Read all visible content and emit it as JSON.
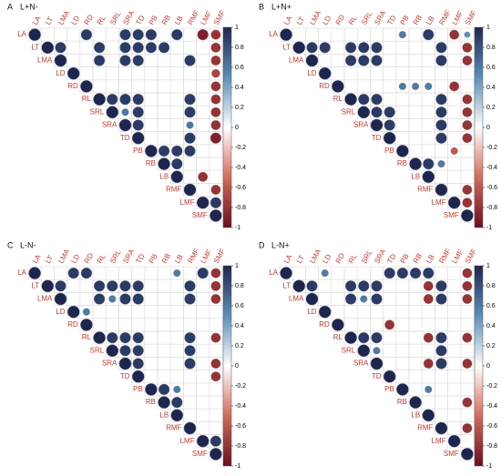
{
  "chart_data": [
    {
      "type": "corrplot",
      "panel": "A",
      "title": "L+N-",
      "labels": [
        "LA",
        "LT",
        "LMA",
        "LD",
        "RD",
        "RL",
        "SRL",
        "SRA",
        "TD",
        "PB",
        "RB",
        "LB",
        "RMF",
        "LMF",
        "SMF"
      ],
      "matrix": [
        [
          1,
          null,
          null,
          null,
          0.9,
          null,
          null,
          0.9,
          0.9,
          0.9,
          null,
          0.9,
          null,
          -0.9,
          -0.8
        ],
        [
          1,
          0.9,
          null,
          null,
          0.9,
          null,
          0.9,
          0.9,
          0.9,
          0.9,
          null,
          null,
          null,
          -0.8
        ],
        [
          1,
          null,
          null,
          0.9,
          null,
          0.9,
          0.9,
          null,
          null,
          null,
          0.9,
          null,
          -0.8
        ],
        [
          1,
          null,
          null,
          null,
          null,
          null,
          null,
          null,
          null,
          null,
          null,
          -0.7
        ],
        [
          1,
          null,
          null,
          null,
          null,
          null,
          null,
          null,
          null,
          null,
          -0.8
        ],
        [
          1,
          0.9,
          0.9,
          0.9,
          null,
          null,
          null,
          0.9,
          null,
          -0.8
        ],
        [
          1,
          0.6,
          0.9,
          null,
          null,
          null,
          0.9,
          null,
          -0.8
        ],
        [
          1,
          0.9,
          null,
          null,
          null,
          0.6,
          null,
          -0.8
        ],
        [
          1,
          null,
          null,
          null,
          0.9,
          null,
          -0.9
        ],
        [
          1,
          0.9,
          0.9,
          0.9,
          null,
          null
        ],
        [
          1,
          0.9,
          null,
          null,
          null
        ],
        [
          1,
          null,
          -0.8,
          null
        ],
        [
          1,
          null,
          -0.8
        ],
        [
          1,
          0.9
        ],
        [
          1
        ]
      ],
      "clim": [
        -1,
        1
      ],
      "ticks": [
        1,
        0.8,
        0.6,
        0.4,
        0.2,
        0,
        -0.2,
        -0.4,
        -0.6,
        -0.8,
        -1
      ],
      "colors": [
        "#6b0e1e",
        "#d46a5a",
        "#ffffff",
        "#5d8fb8",
        "#1e2650"
      ]
    },
    {
      "type": "corrplot",
      "panel": "B",
      "title": "L+N+",
      "labels": [
        "LA",
        "LT",
        "LMA",
        "LD",
        "RD",
        "RL",
        "SRL",
        "SRA",
        "TD",
        "PB",
        "RB",
        "LB",
        "RMF",
        "LMF",
        "SMF"
      ],
      "matrix": [
        [
          1,
          null,
          null,
          null,
          null,
          null,
          null,
          null,
          null,
          0.6,
          null,
          0.9,
          null,
          -0.8,
          0.5
        ],
        [
          1,
          0.9,
          0.9,
          null,
          0.9,
          0.9,
          0.9,
          null,
          null,
          null,
          null,
          0.9,
          null,
          -0.8
        ],
        [
          1,
          null,
          null,
          0.9,
          0.9,
          0.9,
          null,
          null,
          null,
          null,
          0.9,
          null,
          -0.8
        ],
        [
          1,
          null,
          null,
          null,
          null,
          null,
          null,
          null,
          null,
          null,
          null,
          null
        ],
        [
          1,
          null,
          null,
          null,
          null,
          0.6,
          0.6,
          0.6,
          null,
          -0.8,
          null
        ],
        [
          1,
          0.9,
          0.9,
          null,
          null,
          null,
          null,
          0.9,
          null,
          -0.8
        ],
        [
          1,
          0.9,
          0.9,
          null,
          null,
          null,
          0.9,
          null,
          -0.8
        ],
        [
          1,
          0.9,
          null,
          null,
          null,
          0.9,
          null,
          -0.8
        ],
        [
          1,
          null,
          null,
          null,
          0.9,
          null,
          -0.8
        ],
        [
          1,
          null,
          null,
          null,
          -0.6,
          null
        ],
        [
          1,
          0.9,
          0.6,
          null,
          null
        ],
        [
          1,
          null,
          null,
          null
        ],
        [
          1,
          null,
          -0.8
        ],
        [
          1,
          -0.8
        ],
        [
          1
        ]
      ],
      "clim": [
        -1,
        1
      ],
      "ticks": [
        1,
        0.8,
        0.6,
        0.4,
        0.2,
        0,
        -0.2,
        -0.4,
        -0.6,
        -0.8,
        -1
      ],
      "colors": [
        "#6b0e1e",
        "#d46a5a",
        "#ffffff",
        "#5d8fb8",
        "#1e2650"
      ]
    },
    {
      "type": "corrplot",
      "panel": "C",
      "title": "L-N-",
      "labels": [
        "LA",
        "LT",
        "LMA",
        "LD",
        "RD",
        "RL",
        "SRL",
        "SRA",
        "TD",
        "PB",
        "RB",
        "LB",
        "RMF",
        "LMF",
        "SMF"
      ],
      "matrix": [
        [
          1,
          null,
          null,
          0.9,
          0.9,
          null,
          null,
          null,
          null,
          null,
          null,
          0.6,
          null,
          0.9,
          -0.8
        ],
        [
          1,
          0.9,
          null,
          null,
          0.9,
          0.9,
          0.9,
          0.9,
          null,
          null,
          null,
          0.9,
          null,
          -0.8
        ],
        [
          1,
          null,
          null,
          0.9,
          0.6,
          0.9,
          0.9,
          null,
          null,
          null,
          0.9,
          null,
          -0.8
        ],
        [
          1,
          0.6,
          null,
          null,
          null,
          null,
          null,
          null,
          null,
          null,
          null,
          null
        ],
        [
          1,
          null,
          null,
          null,
          null,
          null,
          null,
          null,
          null,
          null,
          null
        ],
        [
          1,
          0.9,
          0.9,
          0.9,
          null,
          null,
          null,
          0.9,
          null,
          -0.8
        ],
        [
          1,
          0.9,
          0.9,
          null,
          null,
          null,
          0.9,
          null,
          null
        ],
        [
          1,
          0.9,
          null,
          null,
          null,
          0.9,
          null,
          -0.8
        ],
        [
          1,
          null,
          null,
          null,
          null,
          null,
          -0.8
        ],
        [
          1,
          0.9,
          0.6,
          null,
          null,
          null
        ],
        [
          1,
          0.9,
          null,
          null,
          null
        ],
        [
          1,
          null,
          null,
          null
        ],
        [
          1,
          null,
          null
        ],
        [
          1,
          0.9
        ],
        [
          1
        ]
      ],
      "clim": [
        -1,
        1
      ],
      "ticks": [
        1,
        0.8,
        0.6,
        0.4,
        0.2,
        0,
        -0.2,
        -0.4,
        -0.6,
        -0.8,
        -1
      ],
      "colors": [
        "#6b0e1e",
        "#d46a5a",
        "#ffffff",
        "#5d8fb8",
        "#1e2650"
      ]
    },
    {
      "type": "corrplot",
      "panel": "D",
      "title": "L-N+",
      "labels": [
        "LA",
        "LT",
        "LMA",
        "LD",
        "RD",
        "RL",
        "SRL",
        "SRA",
        "TD",
        "PB",
        "RB",
        "LB",
        "RMF",
        "LMF",
        "SMF"
      ],
      "matrix": [
        [
          1,
          null,
          null,
          0.6,
          null,
          null,
          null,
          null,
          0.9,
          0.9,
          0.9,
          0.9,
          null,
          null,
          -0.8
        ],
        [
          1,
          0.9,
          null,
          null,
          0.9,
          0.9,
          0.9,
          null,
          null,
          null,
          -0.8,
          0.9,
          null,
          -0.8
        ],
        [
          1,
          null,
          null,
          0.9,
          0.6,
          0.9,
          null,
          null,
          null,
          -0.8,
          0.9,
          null,
          -0.8
        ],
        [
          1,
          null,
          null,
          null,
          null,
          null,
          null,
          null,
          null,
          null,
          null,
          null
        ],
        [
          1,
          null,
          null,
          null,
          -0.8,
          null,
          null,
          null,
          null,
          null,
          null
        ],
        [
          1,
          0.9,
          0.9,
          null,
          null,
          null,
          -0.8,
          0.9,
          null,
          -0.8
        ],
        [
          1,
          0.6,
          null,
          null,
          null,
          null,
          0.9,
          null,
          null
        ],
        [
          1,
          null,
          null,
          null,
          -0.8,
          0.9,
          null,
          -0.8
        ],
        [
          1,
          null,
          null,
          null,
          null,
          null,
          null
        ],
        [
          1,
          null,
          0.6,
          null,
          null,
          null
        ],
        [
          1,
          null,
          null,
          null,
          -0.8
        ],
        [
          1,
          null,
          null,
          null
        ],
        [
          1,
          null,
          -0.8
        ],
        [
          1,
          null
        ],
        [
          1
        ]
      ],
      "clim": [
        -1,
        1
      ],
      "ticks": [
        1,
        0.8,
        0.6,
        0.4,
        0.2,
        0,
        -0.2,
        -0.4,
        -0.6,
        -0.8,
        -1
      ],
      "colors": [
        "#6b0e1e",
        "#d46a5a",
        "#ffffff",
        "#5d8fb8",
        "#1e2650"
      ]
    }
  ]
}
